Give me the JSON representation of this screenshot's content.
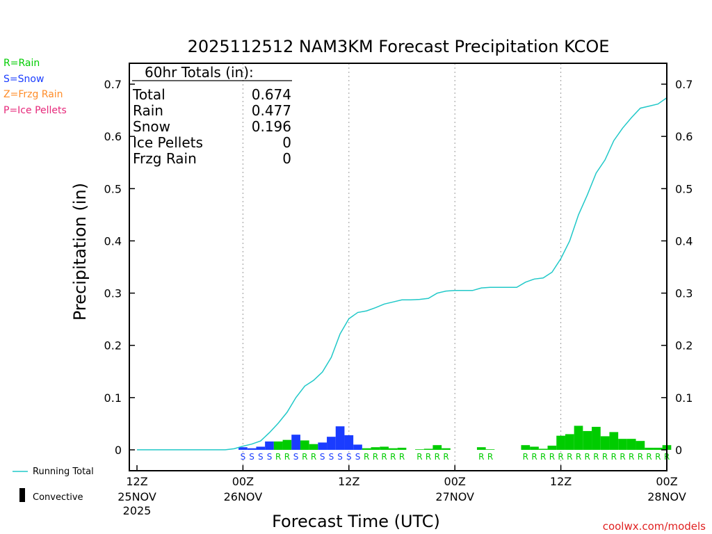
{
  "chart_data": {
    "type": "bar",
    "title": "2025112512 NAM3KM Forecast Precipitation KCOE",
    "ylabel": "Precipitation (in)",
    "xlabel": "Forecast Time (UTC)",
    "ylim": [
      -0.04,
      0.74
    ],
    "xlim": [
      0,
      60
    ],
    "y_ticks": [
      "0",
      "0.1",
      "0.2",
      "0.3",
      "0.4",
      "0.5",
      "0.6",
      "0.7"
    ],
    "y_tick_values": [
      0,
      0.1,
      0.2,
      0.3,
      0.4,
      0.5,
      0.6,
      0.7
    ],
    "x_ticks": [
      {
        "hour": 0,
        "line1": "12Z",
        "line2": "25NOV",
        "line3": "2025"
      },
      {
        "hour": 12,
        "line1": "00Z",
        "line2": "26NOV",
        "line3": ""
      },
      {
        "hour": 24,
        "line1": "12Z",
        "line2": "",
        "line3": ""
      },
      {
        "hour": 36,
        "line1": "00Z",
        "line2": "27NOV",
        "line3": ""
      },
      {
        "hour": 48,
        "line1": "12Z",
        "line2": "",
        "line3": ""
      },
      {
        "hour": 60,
        "line1": "00Z",
        "line2": "28NOV",
        "line3": ""
      }
    ],
    "gridlines_hours": [
      12,
      24,
      36,
      48
    ],
    "colors": {
      "rain": "#00cc00",
      "snow": "#1a3cff",
      "running_total": "#20c8c8",
      "frzg_rain": "#ff8c28",
      "ice_pellets": "#e6287a",
      "grid": "#999999",
      "convective": "#000000"
    },
    "bars": [
      {
        "hour": 12,
        "value": 0.005,
        "type": "S"
      },
      {
        "hour": 13,
        "value": 0.003,
        "type": "S"
      },
      {
        "hour": 14,
        "value": 0.006,
        "type": "S"
      },
      {
        "hour": 15,
        "value": 0.016,
        "type": "S"
      },
      {
        "hour": 16,
        "value": 0.016,
        "type": "R"
      },
      {
        "hour": 17,
        "value": 0.019,
        "type": "R"
      },
      {
        "hour": 18,
        "value": 0.029,
        "type": "S"
      },
      {
        "hour": 19,
        "value": 0.018,
        "type": "R"
      },
      {
        "hour": 20,
        "value": 0.011,
        "type": "R"
      },
      {
        "hour": 21,
        "value": 0.014,
        "type": "S"
      },
      {
        "hour": 22,
        "value": 0.025,
        "type": "S"
      },
      {
        "hour": 23,
        "value": 0.045,
        "type": "S"
      },
      {
        "hour": 24,
        "value": 0.028,
        "type": "S"
      },
      {
        "hour": 25,
        "value": 0.01,
        "type": "S"
      },
      {
        "hour": 26,
        "value": 0.003,
        "type": "R"
      },
      {
        "hour": 27,
        "value": 0.005,
        "type": "R"
      },
      {
        "hour": 28,
        "value": 0.006,
        "type": "R"
      },
      {
        "hour": 29,
        "value": 0.003,
        "type": "R"
      },
      {
        "hour": 30,
        "value": 0.004,
        "type": "R"
      },
      {
        "hour": 32,
        "value": 0.001,
        "type": "R"
      },
      {
        "hour": 33,
        "value": 0.002,
        "type": "R"
      },
      {
        "hour": 34,
        "value": 0.009,
        "type": "R"
      },
      {
        "hour": 35,
        "value": 0.003,
        "type": "R"
      },
      {
        "hour": 39,
        "value": 0.005,
        "type": "R"
      },
      {
        "hour": 40,
        "value": 0.001,
        "type": "R"
      },
      {
        "hour": 44,
        "value": 0.009,
        "type": "R"
      },
      {
        "hour": 45,
        "value": 0.006,
        "type": "R"
      },
      {
        "hour": 46,
        "value": 0.002,
        "type": "R"
      },
      {
        "hour": 47,
        "value": 0.008,
        "type": "R"
      },
      {
        "hour": 48,
        "value": 0.027,
        "type": "R"
      },
      {
        "hour": 49,
        "value": 0.03,
        "type": "R"
      },
      {
        "hour": 50,
        "value": 0.046,
        "type": "R"
      },
      {
        "hour": 51,
        "value": 0.036,
        "type": "R"
      },
      {
        "hour": 52,
        "value": 0.044,
        "type": "R"
      },
      {
        "hour": 53,
        "value": 0.026,
        "type": "R"
      },
      {
        "hour": 54,
        "value": 0.034,
        "type": "R"
      },
      {
        "hour": 55,
        "value": 0.021,
        "type": "R"
      },
      {
        "hour": 56,
        "value": 0.021,
        "type": "R"
      },
      {
        "hour": 57,
        "value": 0.017,
        "type": "R"
      },
      {
        "hour": 58,
        "value": 0.004,
        "type": "R"
      },
      {
        "hour": 59,
        "value": 0.004,
        "type": "R"
      },
      {
        "hour": 60,
        "value": 0.009,
        "type": "R"
      }
    ],
    "running_total": {
      "name": "Running Total",
      "x": [
        0,
        10,
        11,
        12,
        13,
        14,
        15,
        16,
        17,
        18,
        19,
        20,
        21,
        22,
        23,
        24,
        25,
        26,
        27,
        28,
        29,
        30,
        31,
        32,
        33,
        34,
        35,
        36,
        37,
        38,
        39,
        40,
        41,
        42,
        43,
        44,
        45,
        46,
        47,
        48,
        49,
        50,
        51,
        52,
        53,
        54,
        55,
        56,
        57,
        58,
        59,
        60
      ],
      "y": [
        0,
        0,
        0.002,
        0.007,
        0.011,
        0.017,
        0.033,
        0.051,
        0.072,
        0.1,
        0.122,
        0.133,
        0.149,
        0.177,
        0.222,
        0.251,
        0.263,
        0.266,
        0.272,
        0.279,
        0.283,
        0.287,
        0.287,
        0.288,
        0.29,
        0.3,
        0.304,
        0.305,
        0.305,
        0.305,
        0.31,
        0.311,
        0.311,
        0.311,
        0.311,
        0.321,
        0.327,
        0.329,
        0.34,
        0.366,
        0.4,
        0.45,
        0.488,
        0.53,
        0.555,
        0.592,
        0.616,
        0.636,
        0.654,
        0.658,
        0.662,
        0.674
      ]
    }
  },
  "totals": {
    "header": "60hr Totals (in):",
    "rows": [
      {
        "label": "Total",
        "value": "0.674"
      },
      {
        "label": "Rain",
        "value": "0.477"
      },
      {
        "label": "Snow",
        "value": "0.196"
      },
      {
        "label": "Ice Pellets",
        "value": "0"
      },
      {
        "label": "Frzg Rain",
        "value": "0"
      }
    ]
  },
  "legend": {
    "rain": "R=Rain",
    "snow": "S=Snow",
    "frzg_rain": "Z=Frzg Rain",
    "ice_pellets": "P=Ice Pellets",
    "running_total": "Running Total",
    "convective": "Convective"
  },
  "credit": "coolwx.com/models"
}
